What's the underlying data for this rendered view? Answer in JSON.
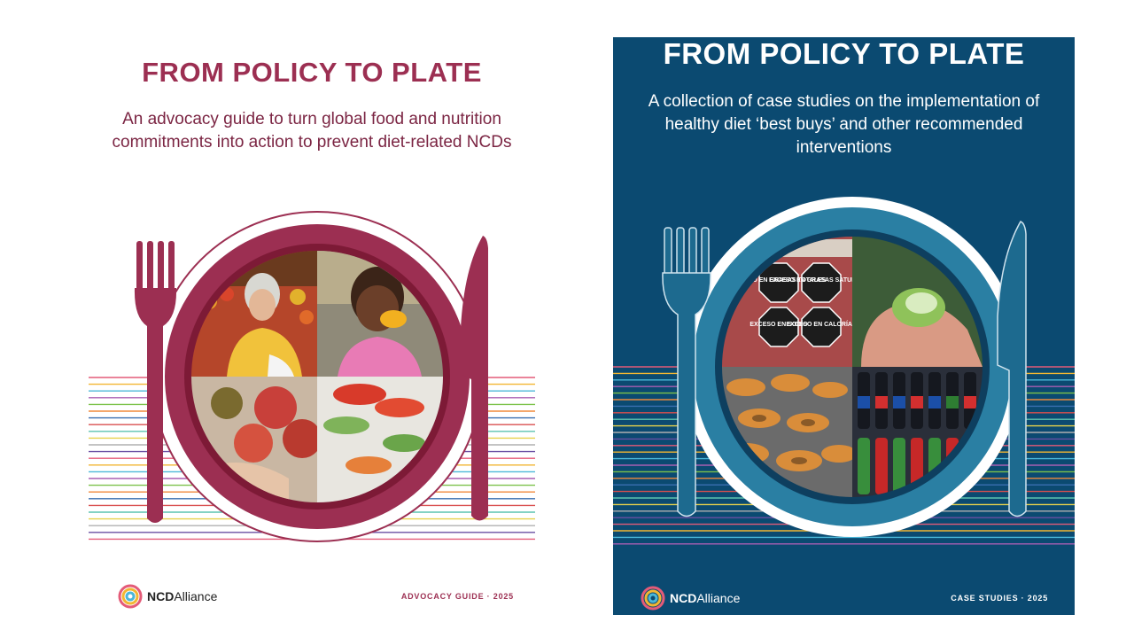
{
  "left_cover": {
    "title": "FROM POLICY TO PLATE",
    "subtitle": "An advocacy guide to turn global food and nutrition commitments into action to prevent diet-related NCDs",
    "brand": {
      "bold": "NCD",
      "light": "Alliance"
    },
    "footer": "ADVOCACY GUIDE · 2025",
    "photos": [
      "woman-with-groceries-photo",
      "girl-eating-mango-photo",
      "apples-photo",
      "vegetables-photo"
    ],
    "colors": {
      "accent": "#9c2f52",
      "plate_dark": "#7d1a36",
      "background": "#ffffff"
    }
  },
  "right_cover": {
    "title": "FROM POLICY TO PLATE",
    "subtitle": "A collection of case studies on the implementation of healthy diet ‘best buys’ and other recommended interventions",
    "brand": {
      "bold": "NCD",
      "light": "Alliance"
    },
    "footer": "CASE STUDIES · 2025",
    "photos": [
      "warning-labels-photo",
      "hand-with-fruit-photo",
      "doughnuts-photo",
      "soda-bottles-photo"
    ],
    "label_texts": [
      "EXCESO EN GRASAS TOTALES",
      "EXCESO EN GRASAS SATURADAS",
      "EXCESO EN SODIO",
      "EXCESO EN CALORÍAS"
    ],
    "colors": {
      "accent": "#2a7fa3",
      "plate_dark": "#0e3f5f",
      "background": "#0b4a71"
    }
  },
  "stripe_colors": [
    "#e45b78",
    "#f2b632",
    "#4bb7d8",
    "#a85fb3",
    "#7dc24b",
    "#f08a3c",
    "#3a6fb0",
    "#d94f4f",
    "#5cc3b0",
    "#e8d24a",
    "#b0b0b0",
    "#6a4fa3"
  ]
}
